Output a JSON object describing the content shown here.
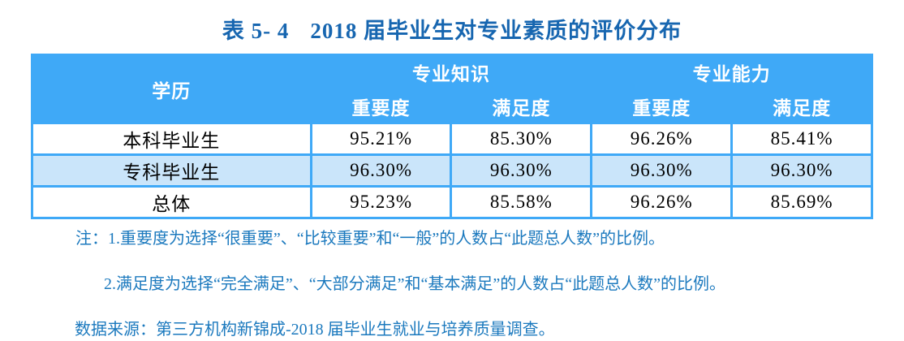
{
  "title": {
    "label": "表 5- 4",
    "text": "2018 届毕业生对专业素质的评价分布"
  },
  "table": {
    "header": {
      "col1": "学历",
      "groups": [
        {
          "label": "专业知识",
          "subs": [
            "重要度",
            "满足度"
          ]
        },
        {
          "label": "专业能力",
          "subs": [
            "重要度",
            "满足度"
          ]
        }
      ]
    },
    "rows": [
      {
        "label": "本科毕业生",
        "values": [
          "95.21%",
          "85.30%",
          "96.26%",
          "85.41%"
        ]
      },
      {
        "label": "专科毕业生",
        "values": [
          "96.30%",
          "96.30%",
          "96.30%",
          "96.30%"
        ]
      },
      {
        "label": "总体",
        "values": [
          "95.23%",
          "85.58%",
          "96.26%",
          "85.69%"
        ]
      }
    ]
  },
  "notes": {
    "note1": "注：1.重要度为选择“很重要”、“比较重要”和“一般”的人数占“此题总人数”的比例。",
    "note2": "2.满足度为选择“完全满足”、“大部分满足”和“基本满足”的人数占“此题总人数”的比例。",
    "source": "数据来源：第三方机构新锦成-2018 届毕业生就业与培养质量调查。"
  },
  "colors": {
    "header_bg": "#3fa9f7",
    "grid_border": "#3fa9f7",
    "alt_row_bg": "#cae5fa",
    "title_color": "#1766b0",
    "note_color": "#1b79be",
    "body_text": "#000000"
  },
  "chart_data": {
    "type": "table",
    "title": "表 5- 4 2018 届毕业生对专业素质的评价分布",
    "columns": [
      "学历",
      "专业知识-重要度",
      "专业知识-满足度",
      "专业能力-重要度",
      "专业能力-满足度"
    ],
    "rows": [
      [
        "本科毕业生",
        "95.21%",
        "85.30%",
        "96.26%",
        "85.41%"
      ],
      [
        "专科毕业生",
        "96.30%",
        "96.30%",
        "96.30%",
        "96.30%"
      ],
      [
        "总体",
        "95.23%",
        "85.58%",
        "96.26%",
        "85.69%"
      ]
    ]
  }
}
